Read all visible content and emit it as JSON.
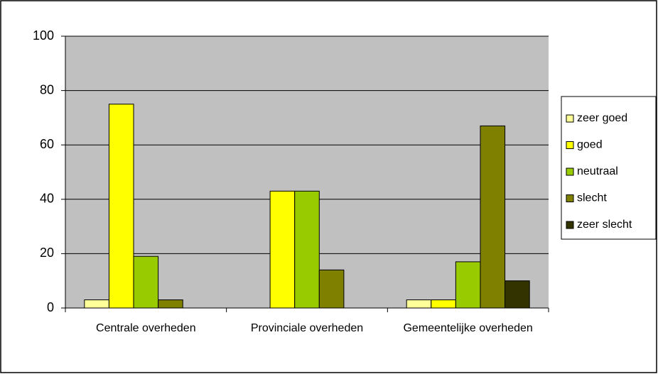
{
  "chart_data": {
    "type": "bar",
    "categories": [
      "Centrale overheden",
      "Provinciale overheden",
      "Gemeentelijke overheden"
    ],
    "series": [
      {
        "name": "zeer goed",
        "color": "#ffff99",
        "values": [
          3,
          0,
          3
        ]
      },
      {
        "name": "goed",
        "color": "#ffff00",
        "values": [
          75,
          43,
          3
        ]
      },
      {
        "name": "neutraal",
        "color": "#99cc00",
        "values": [
          19,
          43,
          17
        ]
      },
      {
        "name": "slecht",
        "color": "#808000",
        "values": [
          3,
          14,
          67
        ]
      },
      {
        "name": "zeer slecht",
        "color": "#333300",
        "values": [
          0,
          0,
          10
        ]
      }
    ],
    "ylim": [
      0,
      100
    ],
    "yticks": [
      0,
      20,
      40,
      60,
      80,
      100
    ],
    "grid": true,
    "legend": "right"
  }
}
